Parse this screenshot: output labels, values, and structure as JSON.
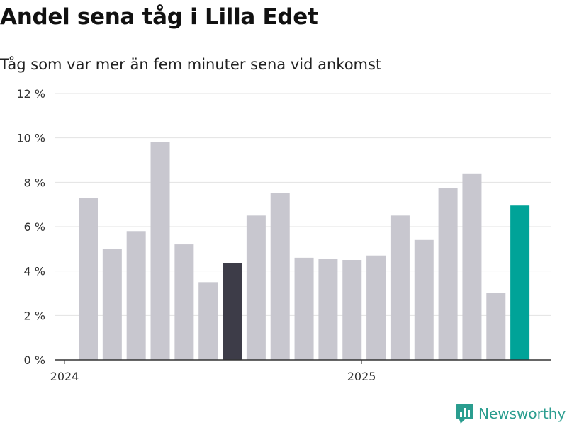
{
  "header": {
    "title": "Andel sena tåg i Lilla Edet",
    "subtitle": "Tåg som var mer än fem minuter sena vid ankomst"
  },
  "brand": {
    "name": "Newsworthy",
    "icon": "newsworthy-logo-icon",
    "color": "#2a9d8f"
  },
  "colors": {
    "default_bar": "#c8c7cf",
    "highlight_dark": "#3d3c48",
    "highlight_last": "#00a398",
    "grid": "#e3e3e3",
    "axis": "#333333"
  },
  "chart_data": {
    "type": "bar",
    "title": "Andel sena tåg i Lilla Edet",
    "subtitle": "Tåg som var mer än fem minuter sena vid ankomst",
    "x_tick_labels": [
      "2024",
      "2025"
    ],
    "x_tick_positions": [
      0,
      12
    ],
    "y_ticks": [
      0,
      2,
      4,
      6,
      8,
      10,
      12
    ],
    "y_tick_labels": [
      "0 %",
      "2 %",
      "4 %",
      "6 %",
      "8 %",
      "10 %",
      "12 %"
    ],
    "ylim": [
      0,
      12
    ],
    "grid": true,
    "series": [
      {
        "values": [
          7.3,
          5.0,
          5.8,
          9.8,
          5.2,
          3.5,
          4.35,
          6.5,
          7.5,
          4.6,
          4.55,
          4.5,
          4.7,
          6.5,
          5.4,
          7.75,
          8.4,
          3.0,
          6.95
        ],
        "highlights": {
          "6": "highlight_dark",
          "18": "highlight_last"
        }
      }
    ]
  }
}
